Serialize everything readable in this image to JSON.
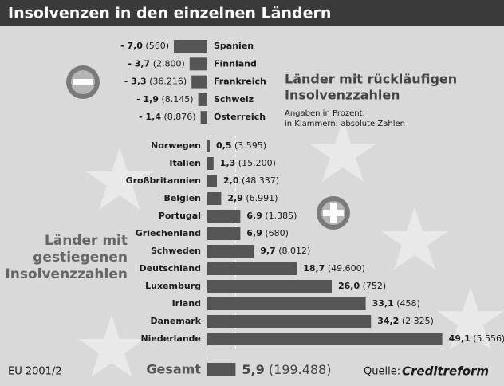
{
  "chart_data": {
    "type": "bar",
    "title": "Insolvenzen in den einzelnen Ländern",
    "categories": [
      "Spanien",
      "Finnland",
      "Frankreich",
      "Schweiz",
      "Österreich",
      "Norwegen",
      "Italien",
      "Großbritannien",
      "Belgien",
      "Portugal",
      "Griechenland",
      "Schweden",
      "Deutschland",
      "Luxemburg",
      "Irland",
      "Danemark",
      "Niederlande"
    ],
    "values": [
      -7.0,
      -3.7,
      -3.3,
      -1.9,
      -1.4,
      0.5,
      1.3,
      2.0,
      2.9,
      6.9,
      6.9,
      9.7,
      18.7,
      26.0,
      33.1,
      34.2,
      49.1
    ],
    "value_labels": [
      "- 7,0",
      "- 3,7",
      "- 3,3",
      "- 1,9",
      "- 1,4",
      "0,5",
      "1,3",
      "2,0",
      "2,9",
      "6,9",
      "6,9",
      "9,7",
      "18,7",
      "26,0",
      "33,1",
      "34,2",
      "49,1"
    ],
    "absolute_labels": [
      "(560)",
      "(2.800)",
      "(36.216)",
      "(8.145)",
      "(8.876)",
      "(3.595)",
      "(15.200)",
      "(48 337)",
      "(6.991)",
      "(1.385)",
      "(680)",
      "(8.012)",
      "(49.600)",
      "(752)",
      "(458)",
      "(2 325)",
      "(5.556)"
    ],
    "color": "#555555",
    "total": {
      "label": "Gesamt",
      "value": 5.9,
      "value_label": "5,9",
      "absolute_label": "(199.488)"
    },
    "annotations": {
      "decreasing": [
        "Länder mit rückläufigen",
        "Insolvenzzahlen"
      ],
      "note": [
        "Angaben in Prozent;",
        "in Klammern: absolute Zahlen"
      ],
      "increasing": [
        "Länder mit",
        "gestiegenen",
        "Insolvenzzahlen"
      ]
    },
    "footer": "EU 2001/2",
    "source_label": "Quelle:",
    "source": "Creditreform"
  }
}
